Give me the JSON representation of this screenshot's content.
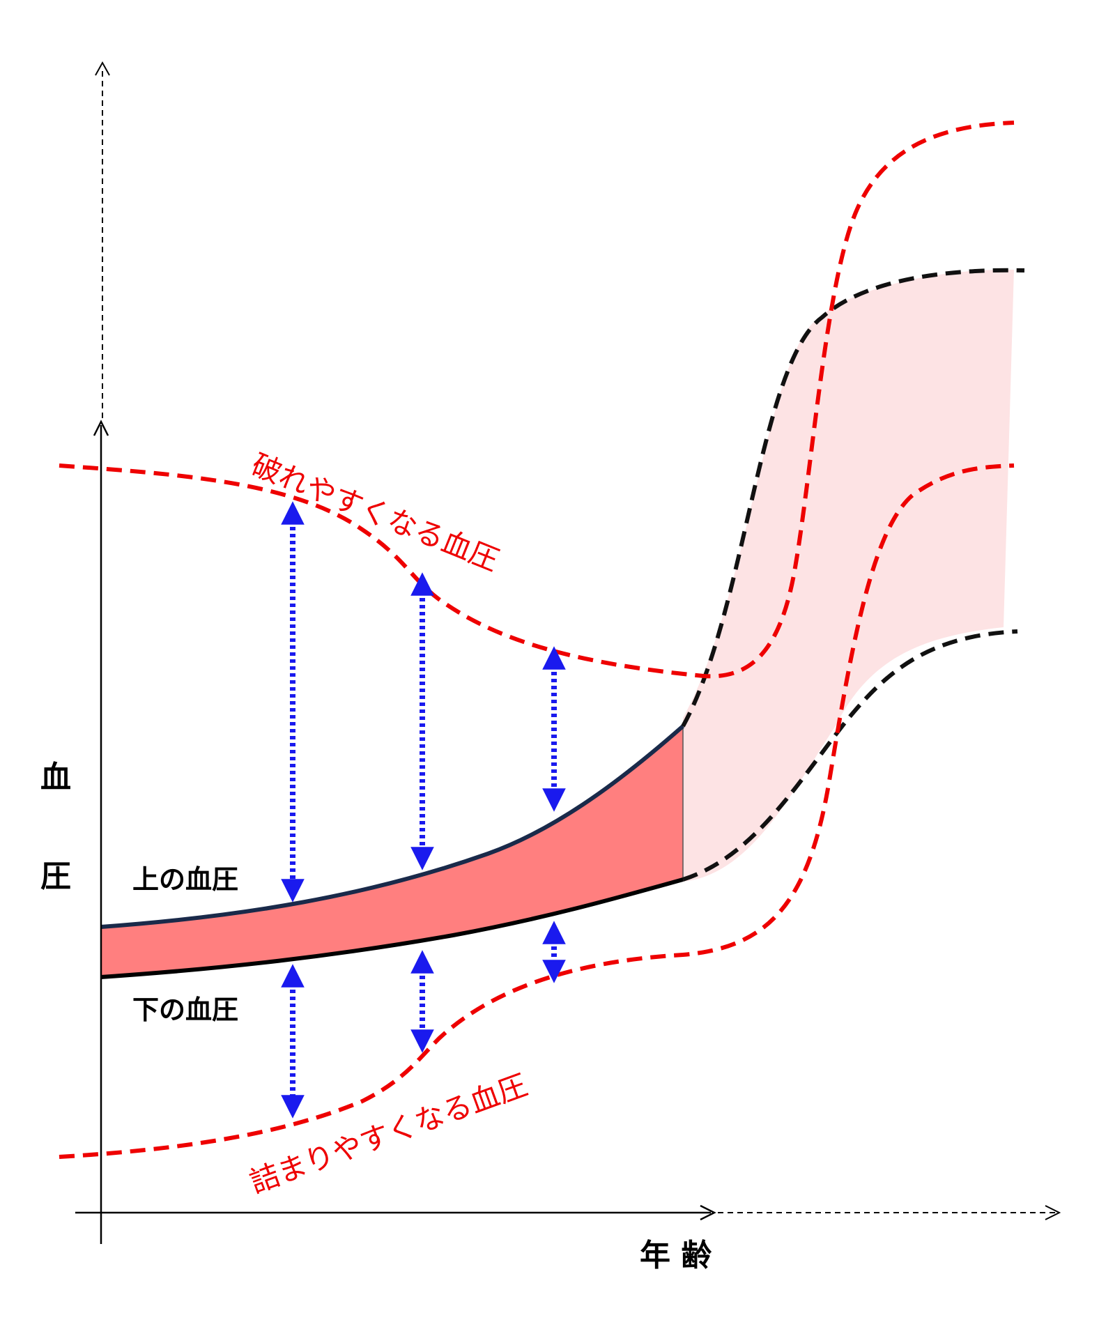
{
  "axes": {
    "y_label_top": "血",
    "y_label_bottom": "圧",
    "x_label": "年 齢"
  },
  "curves": {
    "upper_bp_label": "上の血圧",
    "lower_bp_label": "下の血圧",
    "rupture_label": "破れやすくなる血圧",
    "clog_label": "詰まりやすくなる血圧"
  },
  "colors": {
    "band_fill": "#ff7f7f",
    "band_fill_future": "#fde3e4",
    "threshold_red": "#ee0000",
    "arrow_blue": "#1a1aee",
    "upper_line": "#1a2a4a",
    "lower_line": "#000000"
  }
}
